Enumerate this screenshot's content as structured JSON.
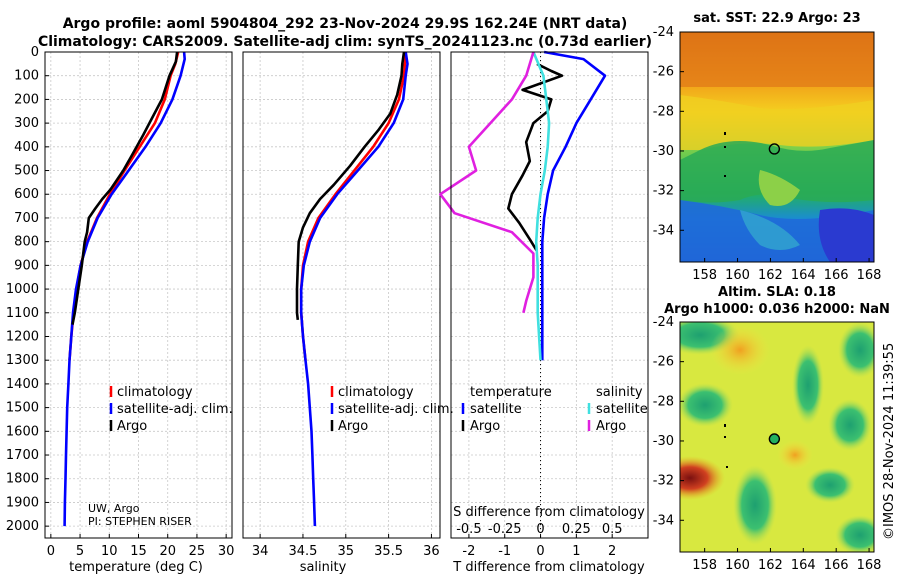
{
  "titles": {
    "line1": "Argo profile: aoml 5904804_292 23-Nov-2024 29.9S 162.24E (NRT data)",
    "line2": "Climatology: CARS2009. Satellite-adj clim: synTS_20241123.nc (0.73d earlier)",
    "sst_title": "sat. SST: 22.9 Argo: 23",
    "sla_title1": "Altim. SLA: 0.18",
    "sla_title2": "Argo h1000: 0.036 h2000: NaN",
    "watermark": "©IMOS 28-Nov-2024 11:39:55"
  },
  "credits": {
    "line1": "UW, Argo",
    "line2": "PI: STEPHEN RISER"
  },
  "colors": {
    "climatology": "#ff0000",
    "satellite": "#0000ff",
    "argo": "#000000",
    "sat_salinity": "#40e0e0",
    "argo_salinity": "#e020e0"
  },
  "chart_data": [
    {
      "type": "line",
      "panel": "temperature",
      "xlabel": "temperature (deg C)",
      "ylabel": "",
      "xlim": [
        -1,
        31
      ],
      "ylim": [
        2050,
        0
      ],
      "xticks": [
        0,
        5,
        10,
        15,
        20,
        25,
        30
      ],
      "yticks": [
        0,
        100,
        200,
        300,
        400,
        500,
        600,
        700,
        800,
        900,
        1000,
        1100,
        1200,
        1300,
        1400,
        1500,
        1600,
        1700,
        1800,
        1900,
        2000
      ],
      "legend": [
        "climatology",
        "satellite-adj. clim.",
        "Argo"
      ],
      "series": [
        {
          "name": "climatology",
          "color": "#ff0000",
          "points": [
            [
              21.8,
              0
            ],
            [
              21.3,
              50
            ],
            [
              20.5,
              100
            ],
            [
              19.5,
              200
            ],
            [
              17.8,
              300
            ],
            [
              15.2,
              400
            ],
            [
              12.6,
              500
            ],
            [
              10.1,
              600
            ],
            [
              7.9,
              700
            ],
            [
              6.2,
              800
            ],
            [
              5.1,
              900
            ],
            [
              4.4,
              1000
            ],
            [
              3.9,
              1100
            ],
            [
              3.5,
              1200
            ],
            [
              3.2,
              1300
            ]
          ]
        },
        {
          "name": "satellite-adj. clim.",
          "color": "#0000ff",
          "points": [
            [
              22.8,
              0
            ],
            [
              22.9,
              30
            ],
            [
              22.2,
              100
            ],
            [
              20.8,
              200
            ],
            [
              18.8,
              300
            ],
            [
              16.2,
              400
            ],
            [
              13.3,
              500
            ],
            [
              10.4,
              600
            ],
            [
              8.0,
              700
            ],
            [
              6.3,
              800
            ],
            [
              5.1,
              900
            ],
            [
              4.3,
              1000
            ],
            [
              3.8,
              1100
            ],
            [
              3.5,
              1200
            ],
            [
              3.2,
              1300
            ],
            [
              3.0,
              1400
            ],
            [
              2.8,
              1500
            ],
            [
              2.7,
              1600
            ],
            [
              2.6,
              1700
            ],
            [
              2.5,
              1800
            ],
            [
              2.4,
              1900
            ],
            [
              2.35,
              2000
            ]
          ]
        },
        {
          "name": "Argo",
          "color": "#000000",
          "points": [
            [
              21.6,
              0
            ],
            [
              21.4,
              40
            ],
            [
              20.3,
              100
            ],
            [
              19.0,
              200
            ],
            [
              17.3,
              280
            ],
            [
              15.8,
              350
            ],
            [
              14.0,
              430
            ],
            [
              12.4,
              500
            ],
            [
              10.2,
              580
            ],
            [
              8.8,
              620
            ],
            [
              7.6,
              660
            ],
            [
              6.5,
              700
            ],
            [
              6.2,
              760
            ],
            [
              5.8,
              800
            ],
            [
              5.3,
              900
            ],
            [
              4.7,
              1000
            ],
            [
              4.1,
              1100
            ],
            [
              3.7,
              1150
            ]
          ]
        }
      ]
    },
    {
      "type": "line",
      "panel": "salinity",
      "xlabel": "salinity",
      "xlim": [
        33.8,
        36.1
      ],
      "ylim": [
        2050,
        0
      ],
      "xticks": [
        34,
        34.5,
        35,
        35.5,
        36
      ],
      "legend": [
        "climatology",
        "satellite-adj. clim.",
        "Argo"
      ],
      "series": [
        {
          "name": "climatology",
          "color": "#ff0000",
          "points": [
            [
              35.7,
              0
            ],
            [
              35.68,
              100
            ],
            [
              35.62,
              200
            ],
            [
              35.5,
              300
            ],
            [
              35.32,
              400
            ],
            [
              35.1,
              500
            ],
            [
              34.88,
              600
            ],
            [
              34.68,
              700
            ],
            [
              34.56,
              800
            ],
            [
              34.5,
              900
            ],
            [
              34.48,
              1000
            ],
            [
              34.48,
              1100
            ],
            [
              34.5,
              1200
            ],
            [
              34.53,
              1300
            ]
          ]
        },
        {
          "name": "satellite-adj. clim.",
          "color": "#0000ff",
          "points": [
            [
              35.7,
              0
            ],
            [
              35.72,
              50
            ],
            [
              35.7,
              100
            ],
            [
              35.67,
              200
            ],
            [
              35.56,
              300
            ],
            [
              35.38,
              400
            ],
            [
              35.14,
              500
            ],
            [
              34.9,
              600
            ],
            [
              34.7,
              700
            ],
            [
              34.58,
              800
            ],
            [
              34.51,
              900
            ],
            [
              34.48,
              1000
            ],
            [
              34.48,
              1100
            ],
            [
              34.5,
              1200
            ],
            [
              34.53,
              1300
            ],
            [
              34.56,
              1400
            ],
            [
              34.58,
              1500
            ],
            [
              34.6,
              1600
            ],
            [
              34.61,
              1700
            ],
            [
              34.62,
              1800
            ],
            [
              34.63,
              1900
            ],
            [
              34.64,
              2000
            ]
          ]
        },
        {
          "name": "Argo",
          "color": "#000000",
          "points": [
            [
              35.68,
              0
            ],
            [
              35.66,
              50
            ],
            [
              35.65,
              100
            ],
            [
              35.6,
              180
            ],
            [
              35.52,
              260
            ],
            [
              35.38,
              330
            ],
            [
              35.22,
              400
            ],
            [
              35.05,
              480
            ],
            [
              34.86,
              560
            ],
            [
              34.7,
              620
            ],
            [
              34.58,
              680
            ],
            [
              34.5,
              740
            ],
            [
              34.45,
              800
            ],
            [
              34.44,
              900
            ],
            [
              34.43,
              1000
            ],
            [
              34.43,
              1100
            ],
            [
              34.44,
              1130
            ]
          ]
        }
      ]
    },
    {
      "type": "line",
      "panel": "difference",
      "xlabel": "T difference from climatology",
      "top_axis_label": "S difference from climatology",
      "xlim": [
        -2.5,
        3
      ],
      "ylim": [
        2050,
        0
      ],
      "xticks": [
        -2,
        -1,
        0,
        1,
        2
      ],
      "top_ticks": [
        "-0.5",
        "-0.25",
        "0",
        "0.25",
        "0.5"
      ],
      "legend_temperature_header": "temperature",
      "legend_salinity_header": "salinity",
      "legend_temperature": [
        "satellite",
        "Argo"
      ],
      "legend_salinity": [
        "satellite",
        "Argo"
      ],
      "series": [
        {
          "name": "temperature satellite",
          "color": "#0000ff",
          "points": [
            [
              0.1,
              0
            ],
            [
              1.2,
              30
            ],
            [
              1.8,
              100
            ],
            [
              1.4,
              200
            ],
            [
              1.0,
              300
            ],
            [
              0.7,
              400
            ],
            [
              0.35,
              500
            ],
            [
              0.2,
              600
            ],
            [
              0.1,
              700
            ],
            [
              0.05,
              800
            ],
            [
              0.05,
              900
            ],
            [
              0.05,
              1000
            ],
            [
              0.05,
              1100
            ],
            [
              0.05,
              1200
            ],
            [
              0.05,
              1300
            ]
          ]
        },
        {
          "name": "temperature Argo",
          "color": "#000000",
          "points": [
            [
              -0.1,
              50
            ],
            [
              0.3,
              80
            ],
            [
              0.6,
              100
            ],
            [
              -0.5,
              160
            ],
            [
              0.3,
              200
            ],
            [
              0.2,
              250
            ],
            [
              -0.2,
              300
            ],
            [
              -0.4,
              380
            ],
            [
              -0.3,
              460
            ],
            [
              -0.5,
              520
            ],
            [
              -0.8,
              600
            ],
            [
              -0.9,
              660
            ],
            [
              -0.6,
              720
            ],
            [
              -0.3,
              790
            ],
            [
              -0.1,
              840
            ]
          ]
        },
        {
          "name": "salinity satellite",
          "color": "#40e0e0",
          "points": [
            [
              -0.05,
              0
            ],
            [
              0.02,
              100
            ],
            [
              0.04,
              200
            ],
            [
              0.06,
              300
            ],
            [
              0.05,
              400
            ],
            [
              0.03,
              500
            ],
            [
              0.0,
              600
            ],
            [
              -0.02,
              700
            ],
            [
              -0.03,
              800
            ],
            [
              -0.02,
              900
            ],
            [
              -0.02,
              1000
            ],
            [
              -0.02,
              1100
            ],
            [
              -0.01,
              1200
            ],
            [
              0.0,
              1300
            ]
          ]
        },
        {
          "name": "salinity Argo",
          "color": "#e020e0",
          "points": [
            [
              -0.05,
              0
            ],
            [
              -0.1,
              100
            ],
            [
              -0.2,
              200
            ],
            [
              -0.35,
              300
            ],
            [
              -0.5,
              400
            ],
            [
              -0.45,
              500
            ],
            [
              -0.7,
              600
            ],
            [
              -0.6,
              680
            ],
            [
              -0.2,
              760
            ],
            [
              -0.05,
              850
            ],
            [
              -0.05,
              950
            ],
            [
              -0.1,
              1050
            ],
            [
              -0.12,
              1100
            ]
          ]
        }
      ]
    },
    {
      "type": "heatmap",
      "panel": "sst_map",
      "title": "sat. SST: 22.9 Argo: 23",
      "xticks": [
        158,
        160,
        162,
        164,
        166,
        168
      ],
      "yticks": [
        -24,
        -26,
        -28,
        -30,
        -32,
        -34
      ],
      "xlim": [
        156.5,
        168.3
      ],
      "ylim": [
        -35.6,
        -24
      ],
      "marker": {
        "lon": 162.24,
        "lat": -29.9
      }
    },
    {
      "type": "heatmap",
      "panel": "sla_map",
      "title": "Altim. SLA: 0.18",
      "xticks": [
        158,
        160,
        162,
        164,
        166,
        168
      ],
      "yticks": [
        -24,
        -26,
        -28,
        -30,
        -32,
        -34
      ],
      "xlim": [
        156.5,
        168.3
      ],
      "ylim": [
        -35.6,
        -24
      ],
      "marker": {
        "lon": 162.24,
        "lat": -29.9
      }
    }
  ]
}
